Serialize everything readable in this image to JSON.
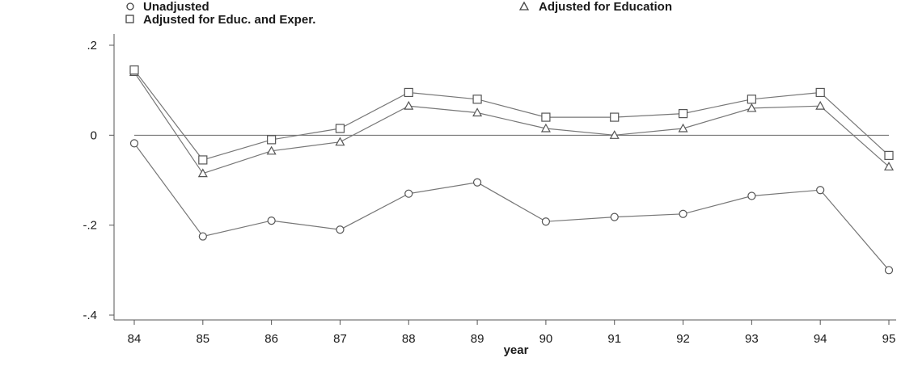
{
  "chart_data": {
    "type": "line",
    "xlabel": "year",
    "ylabel": "",
    "x": [
      84,
      85,
      86,
      87,
      88,
      89,
      90,
      91,
      92,
      93,
      94,
      95
    ],
    "xticks": [
      "84",
      "85",
      "86",
      "87",
      "88",
      "89",
      "90",
      "91",
      "92",
      "93",
      "94",
      "95"
    ],
    "yticks": [
      {
        "value": 0.2,
        "label": ".2"
      },
      {
        "value": 0,
        "label": "0"
      },
      {
        "value": -0.2,
        "label": "-.2"
      },
      {
        "value": -0.4,
        "label": "-.4"
      }
    ],
    "xlim": [
      84,
      95
    ],
    "ylim": [
      -0.4,
      0.2
    ],
    "reference_line": 0,
    "grid": false,
    "legend_position": "top",
    "series": [
      {
        "name": "Unadjusted",
        "marker": "circle",
        "values": [
          -0.018,
          -0.225,
          -0.19,
          -0.21,
          -0.13,
          -0.105,
          -0.192,
          -0.182,
          -0.175,
          -0.135,
          -0.122,
          -0.3
        ]
      },
      {
        "name": "Adjusted for Education",
        "marker": "triangle",
        "values": [
          0.14,
          -0.085,
          -0.035,
          -0.015,
          0.065,
          0.05,
          0.015,
          0.0,
          0.015,
          0.06,
          0.065,
          -0.07
        ]
      },
      {
        "name": "Adjusted for Educ. and Exper.",
        "marker": "square",
        "values": [
          0.145,
          -0.055,
          -0.01,
          0.015,
          0.095,
          0.08,
          0.04,
          0.04,
          0.048,
          0.08,
          0.095,
          -0.045
        ]
      }
    ]
  }
}
